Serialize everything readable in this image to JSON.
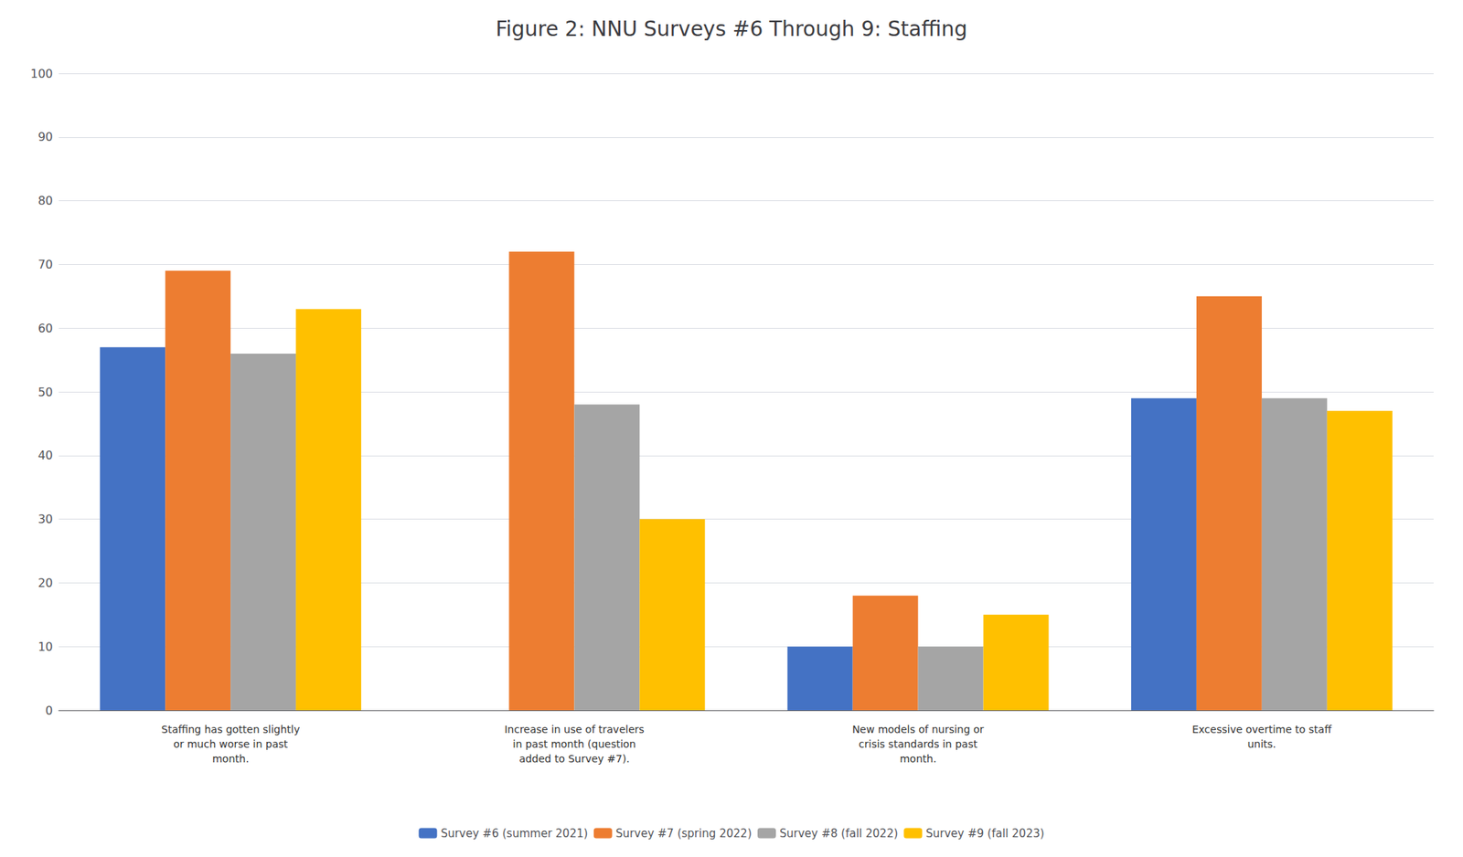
{
  "chart_data": {
    "type": "bar",
    "title": "Figure 2: NNU Surveys #6 Through 9: Staffing",
    "categories": [
      "Staffing has gotten slightly\nor much worse in past\nmonth.",
      "Increase in use of travelers\nin past month (question\nadded to Survey #7).",
      "New models of nursing or\ncrisis standards in past\nmonth.",
      "Excessive overtime to staff\nunits."
    ],
    "series": [
      {
        "name": "Survey #6 (summer 2021)",
        "color": "#4472C4",
        "values": [
          57,
          null,
          10,
          49
        ]
      },
      {
        "name": "Survey #7 (spring 2022)",
        "color": "#ED7D31",
        "values": [
          69,
          72,
          18,
          65
        ]
      },
      {
        "name": "Survey #8 (fall 2022)",
        "color": "#A5A5A5",
        "values": [
          56,
          48,
          10,
          49
        ]
      },
      {
        "name": "Survey #9 (fall 2023)",
        "color": "#FFC000",
        "values": [
          63,
          30,
          15,
          47
        ]
      }
    ],
    "ylim": [
      0,
      100
    ],
    "yticks": [
      0,
      10,
      20,
      30,
      40,
      50,
      60,
      70,
      80,
      90,
      100
    ],
    "grid": true,
    "legend": "bottom"
  }
}
